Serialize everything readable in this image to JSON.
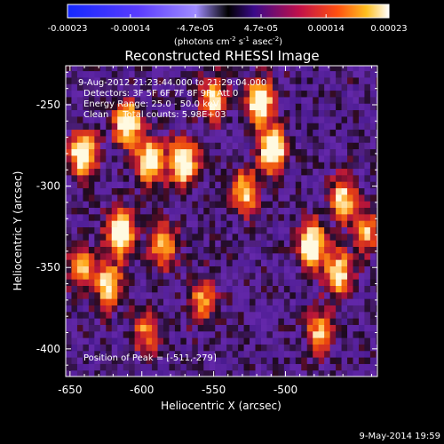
{
  "colorbar": {
    "tick_labels": [
      "-0.00023",
      "-0.00014",
      "-4.7e-05",
      "4.7e-05",
      "0.00014",
      "0.00023"
    ],
    "tick_values": [
      -0.00023,
      -0.00014,
      -4.7e-05,
      4.7e-05,
      0.00014,
      0.00023
    ],
    "range": [
      -0.00023,
      0.00023
    ],
    "units_label": "(photons cm",
    "units_sup1": "-2",
    "units_mid": " s",
    "units_sup2": "-1",
    "units_tail": " asec",
    "units_sup3": "-2",
    "units_close": ")"
  },
  "annotations": {
    "line1": "9-Aug-2012 21:23:44.000 to 21:29:04.000",
    "line2": "Detectors: 3F 5F 6F 7F 8F 9F, Att 0",
    "line3": "Energy Range: 25.0 - 50.0 keV",
    "line4": "Clean     Total counts: 5.98E+03",
    "peak": "Position of Peak = [-511,-279]"
  },
  "footer": {
    "date": "9-May-2014 19:59"
  },
  "chart_data": {
    "type": "heatmap",
    "title": "Reconstructed RHESSI Image",
    "xlabel": "Heliocentric X (arcsec)",
    "ylabel": "Heliocentric Y (arcsec)",
    "xlim": [
      -653,
      -436
    ],
    "ylim": [
      -417,
      -226
    ],
    "xticks": [
      -650,
      -600,
      -550,
      -500
    ],
    "xtick_labels": [
      "-650",
      "-600",
      "-550",
      "-500"
    ],
    "yticks": [
      -400,
      -350,
      -300,
      -250
    ],
    "ytick_labels": [
      "-400",
      "-350",
      "-300",
      "-250"
    ],
    "colormap": "hot-cold (blue-white-purple-red-yellow-white)",
    "peak_position": [
      -511,
      -279
    ],
    "grid": false,
    "hot_spots": [
      {
        "x": -643,
        "y": -282,
        "intensity": 1.0
      },
      {
        "x": -612,
        "y": -263,
        "intensity": 0.95
      },
      {
        "x": -596,
        "y": -286,
        "intensity": 0.9
      },
      {
        "x": -573,
        "y": -287,
        "intensity": 1.0
      },
      {
        "x": -552,
        "y": -248,
        "intensity": 0.7
      },
      {
        "x": -520,
        "y": -250,
        "intensity": 1.0
      },
      {
        "x": -511,
        "y": -279,
        "intensity": 1.0
      },
      {
        "x": -530,
        "y": -305,
        "intensity": 0.7
      },
      {
        "x": -617,
        "y": -330,
        "intensity": 1.0
      },
      {
        "x": -625,
        "y": -362,
        "intensity": 0.8
      },
      {
        "x": -587,
        "y": -338,
        "intensity": 0.7
      },
      {
        "x": -560,
        "y": -372,
        "intensity": 0.55
      },
      {
        "x": -484,
        "y": -338,
        "intensity": 1.0
      },
      {
        "x": -465,
        "y": -355,
        "intensity": 0.8
      },
      {
        "x": -462,
        "y": -310,
        "intensity": 0.75
      },
      {
        "x": -478,
        "y": -392,
        "intensity": 0.65
      },
      {
        "x": -445,
        "y": -330,
        "intensity": 0.6
      },
      {
        "x": -644,
        "y": -352,
        "intensity": 0.55
      },
      {
        "x": -599,
        "y": -392,
        "intensity": 0.5
      }
    ]
  }
}
